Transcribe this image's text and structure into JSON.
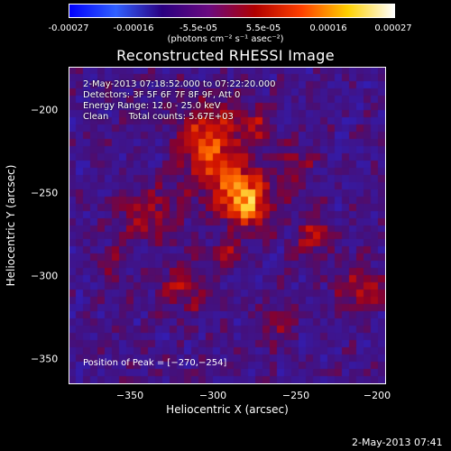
{
  "colorbar": {
    "ticks": [
      "-0.00027",
      "-0.00016",
      "-5.5e-05",
      "5.5e-05",
      "0.00016",
      "0.00027"
    ],
    "units": "(photons cm⁻² s⁻¹ asec⁻²)",
    "stops": [
      "#0000ff",
      "#3060ff",
      "#2a0080",
      "#6a0a80",
      "#b00000",
      "#ff4000",
      "#ffd000",
      "#ffffff"
    ]
  },
  "plot": {
    "title": "Reconstructed RHESSI Image",
    "info_lines": [
      "2-May-2013 07:18:52.000 to 07:22:20.000",
      "Detectors: 3F 5F 6F 7F 8F 9F, Att 0",
      "Energy Range: 12.0 - 25.0 keV",
      "Clean       Total counts: 5.67E+03"
    ],
    "peak_label": "Position of Peak = [−270,−254]"
  },
  "axes": {
    "xlabel": "Heliocentric X (arcsec)",
    "ylabel": "Heliocentric Y (arcsec)",
    "xticks": [
      "−350",
      "−300",
      "−250",
      "−200"
    ],
    "yticks": [
      "−200",
      "−250",
      "−300",
      "−350"
    ],
    "xrange": [
      -385,
      -195
    ],
    "yrange": [
      -367,
      -177
    ]
  },
  "footer": {
    "timestamp": "2-May-2013 07:41"
  }
}
